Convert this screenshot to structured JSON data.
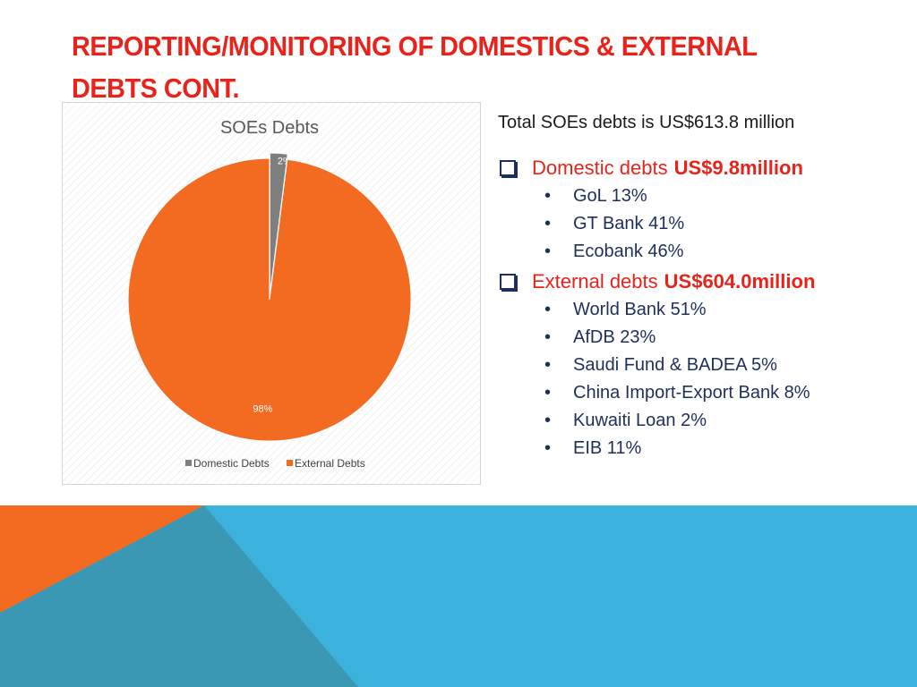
{
  "slide": {
    "title_lines": [
      "REPORTING/MONITORING OF DOMESTICS & EXTERNAL",
      "DEBTS CONT."
    ]
  },
  "summary": {
    "total": "Total SOEs debts is US$613.8 million",
    "groups": [
      {
        "label": "Domestic debts",
        "amount": "US$9.8million",
        "items": [
          "GoL 13%",
          "GT Bank 41%",
          "Ecobank 46%"
        ]
      },
      {
        "label": "External debts",
        "amount": "US$604.0million",
        "items": [
          "World Bank 51%",
          "AfDB 23%",
          "Saudi Fund & BADEA 5%",
          "China Import-Export Bank 8%",
          "Kuwaiti Loan 2%",
          "EIB 11%"
        ]
      }
    ]
  },
  "chart_data": {
    "type": "pie",
    "title": "SOEs Debts",
    "categories": [
      "Domestic Debts",
      "External Debts"
    ],
    "values": [
      2,
      98
    ],
    "labels": [
      "2%",
      "98%"
    ],
    "colors": [
      "#7f7f7f",
      "#f26b21"
    ],
    "legend_position": "bottom"
  },
  "colors": {
    "accent_red": "#e8231b",
    "navy": "#1f2f5c",
    "orange": "#f26b21",
    "sky": "#3ab2dd",
    "teal": "#3b98b4"
  },
  "icons": {
    "group_bullet": "checkbox-icon",
    "item_bullet": "•"
  }
}
